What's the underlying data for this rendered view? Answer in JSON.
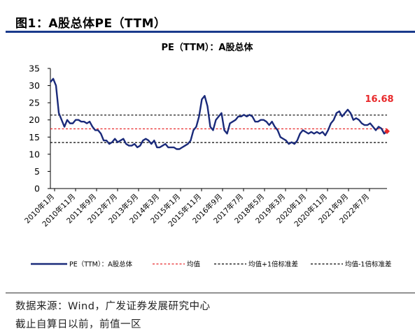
{
  "figure_title": "图1：A股总体PE（TTM）",
  "source": "数据来源：Wind，广发证券发展研究中心",
  "footnote": "截止自算日以前，前值一区",
  "colors": {
    "series": "#1a2a7a",
    "mean": "#e8282a",
    "band": "#000000",
    "annotation": "#e8282a",
    "title_rule": "#1a3a8c"
  },
  "chart_data": {
    "type": "line",
    "title": "PE（TTM）：A股总体",
    "xlabel": "",
    "ylabel": "",
    "ylim": [
      0,
      35
    ],
    "yticks": [
      0,
      5,
      10,
      15,
      20,
      25,
      30,
      35
    ],
    "x_tick_labels": [
      "2010年1月",
      "2010年11月",
      "2011年9月",
      "2012年7月",
      "2013年5月",
      "2014年3月",
      "2015年1月",
      "2015年11月",
      "2016年9月",
      "2017年7月",
      "2018年5月",
      "2019年3月",
      "2020年1月",
      "2020年11月",
      "2021年9月",
      "2022年7月"
    ],
    "grid": false,
    "legend_position": "bottom",
    "annotation": {
      "text": "16.68",
      "value": 16.68
    },
    "series": [
      {
        "name": "PE（TTM）：A股总体",
        "style": "solid",
        "values": [
          31,
          32,
          30,
          22,
          20,
          18,
          20,
          19,
          19,
          20,
          20,
          19.5,
          19.5,
          19,
          19.5,
          18,
          17,
          17,
          16,
          14,
          14,
          13,
          13.5,
          14.5,
          13.5,
          14,
          14.5,
          13,
          12.5,
          12.5,
          13,
          12,
          12.5,
          14,
          14.5,
          14,
          13,
          14,
          12,
          12,
          12.5,
          13,
          12,
          12,
          12,
          11.5,
          11.5,
          12,
          12.5,
          13,
          14,
          17,
          18,
          21,
          26,
          27,
          24,
          18,
          17,
          20,
          21,
          22,
          17,
          16,
          19,
          19.5,
          20,
          21,
          21,
          21.5,
          21,
          21.5,
          21,
          19.5,
          19.5,
          20,
          20,
          19.5,
          18.5,
          19.5,
          18,
          17,
          15,
          14.5,
          14,
          13,
          13.5,
          13,
          14,
          16,
          17,
          16.5,
          16,
          16.5,
          16,
          16.5,
          16,
          16.5,
          15.5,
          17,
          19,
          20,
          22,
          22.5,
          21,
          22,
          23,
          22,
          20,
          20.5,
          20,
          19,
          18.5,
          18.5,
          19,
          18,
          17,
          18,
          17.5,
          16,
          16.68
        ]
      },
      {
        "name": "均值",
        "style": "dashed",
        "values": [
          17.4
        ]
      },
      {
        "name": "均值+1倍标准差",
        "style": "dashed",
        "values": [
          21.4
        ]
      },
      {
        "name": "均值-1倍标准差",
        "style": "dashed",
        "values": [
          13.4
        ]
      }
    ]
  }
}
